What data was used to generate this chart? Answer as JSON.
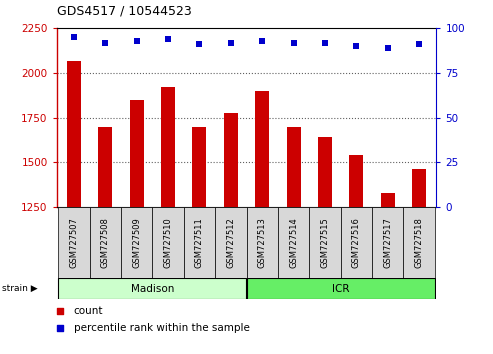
{
  "title": "GDS4517 / 10544523",
  "categories": [
    "GSM727507",
    "GSM727508",
    "GSM727509",
    "GSM727510",
    "GSM727511",
    "GSM727512",
    "GSM727513",
    "GSM727514",
    "GSM727515",
    "GSM727516",
    "GSM727517",
    "GSM727518"
  ],
  "bar_values": [
    2065,
    1700,
    1850,
    1920,
    1700,
    1775,
    1900,
    1700,
    1640,
    1540,
    1330,
    1465
  ],
  "dot_values": [
    95,
    92,
    93,
    94,
    91,
    92,
    93,
    92,
    92,
    90,
    89,
    91
  ],
  "ylim_left": [
    1250,
    2250
  ],
  "ylim_right": [
    0,
    100
  ],
  "yticks_left": [
    1250,
    1500,
    1750,
    2000,
    2250
  ],
  "yticks_right": [
    0,
    25,
    50,
    75,
    100
  ],
  "bar_color": "#cc0000",
  "dot_color": "#0000cc",
  "group1_label": "Madison",
  "group1_indices": [
    0,
    1,
    2,
    3,
    4,
    5
  ],
  "group2_label": "ICR",
  "group2_indices": [
    6,
    7,
    8,
    9,
    10,
    11
  ],
  "group1_color": "#ccffcc",
  "group2_color": "#66ee66",
  "strain_label": "strain",
  "legend_count": "count",
  "legend_pct": "percentile rank within the sample",
  "background_color": "#ffffff",
  "tick_area_color": "#d8d8d8",
  "grid_color": "#606060",
  "grid_yticks": [
    1500,
    1750,
    2000
  ],
  "bar_width": 0.45,
  "left_spine_color": "#cc0000",
  "right_spine_color": "#0000cc"
}
